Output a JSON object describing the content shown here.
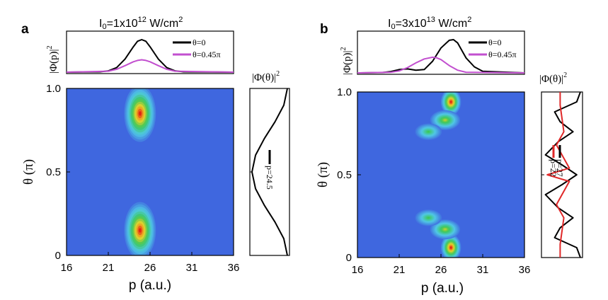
{
  "figure_panels": [
    {
      "panel_label": "a",
      "intensity_label": "I",
      "intensity_sub": "0",
      "intensity_value": "=1x10",
      "intensity_exp": "12",
      "intensity_unit": " W/cm",
      "intensity_unit_exp": "2",
      "momentum_dist_label": "|Φ(p)|",
      "momentum_dist_exp": "2",
      "angular_dist_label": "|Φ(θ)|",
      "angular_dist_exp": "2",
      "xlabel": "p (a.u.)",
      "ylabel": "θ (π)"
    },
    {
      "panel_label": "b",
      "intensity_label": "I",
      "intensity_sub": "0",
      "intensity_value": "=3x10",
      "intensity_exp": "13",
      "intensity_unit": " W/cm",
      "intensity_unit_exp": "2",
      "momentum_dist_label": "|Φ(p)|",
      "momentum_dist_exp": "2",
      "angular_dist_label": "|Φ(θ)|",
      "angular_dist_exp": "2",
      "xlabel": "p (a.u.)",
      "ylabel": "θ (π)"
    }
  ],
  "colors": {
    "map_background": "#3f67df",
    "theta0": "#000000",
    "theta045": "#c24fcf",
    "p22": "#e02828"
  },
  "chart_data": [
    {
      "type": "heatmap",
      "panel": "a",
      "xlabel": "p (a.u.)",
      "ylabel": "θ (π)",
      "xlim": [
        16,
        36
      ],
      "ylim": [
        0,
        1
      ],
      "xticks": [
        "16",
        "21",
        "26",
        "31",
        "36"
      ],
      "yticks": [
        "0",
        "0.5",
        "1.0"
      ],
      "description": "two lobes centered at p=24.8, theta=0.15 and theta=0.85",
      "lobes": [
        {
          "p_center": 24.8,
          "theta_center": 0.15,
          "p_width": 1.9,
          "theta_width": 0.17,
          "peak": 1.0
        },
        {
          "p_center": 24.8,
          "theta_center": 0.85,
          "p_width": 1.9,
          "theta_width": 0.17,
          "peak": 1.0
        }
      ],
      "top_plot": {
        "type": "line",
        "title": "I0=1x10^12 W/cm2",
        "ylabel": "|Φ(p)|2",
        "series": [
          {
            "name": "θ=0",
            "x": [
              16,
              20,
              21,
              22,
              23,
              24,
              24.5,
              25,
              25.5,
              26,
              27,
              28,
              29,
              30,
              36
            ],
            "y": [
              0,
              0.01,
              0.04,
              0.14,
              0.4,
              0.78,
              0.95,
              1.0,
              0.95,
              0.78,
              0.4,
              0.14,
              0.04,
              0.01,
              0
            ]
          },
          {
            "name": "θ=0.45π",
            "x": [
              16,
              21,
              22,
              23,
              24,
              24.5,
              25,
              25.5,
              26,
              27,
              28,
              29,
              36
            ],
            "y": [
              0,
              0.03,
              0.09,
              0.2,
              0.32,
              0.36,
              0.38,
              0.36,
              0.32,
              0.2,
              0.09,
              0.03,
              0
            ]
          }
        ]
      },
      "side_plot": {
        "type": "line",
        "ylabel": "|Φ(θ)|2",
        "series": [
          {
            "name": "p=24.5",
            "theta": [
              0,
              0.1,
              0.2,
              0.3,
              0.4,
              0.5,
              0.6,
              0.7,
              0.8,
              0.9,
              1.0
            ],
            "value": [
              1.0,
              0.9,
              0.65,
              0.35,
              0.1,
              0.0,
              0.1,
              0.35,
              0.65,
              0.9,
              1.0
            ]
          }
        ]
      }
    },
    {
      "type": "heatmap",
      "panel": "b",
      "xlabel": "p (a.u.)",
      "ylabel": "θ (π)",
      "xlim": [
        16,
        36
      ],
      "ylim": [
        0,
        1
      ],
      "xticks": [
        "16",
        "21",
        "26",
        "31",
        "36"
      ],
      "yticks": [
        "0",
        "0.5",
        "1.0"
      ],
      "description": "tilted multi-lobe interference pattern, maxima near p=27 at theta=0.05 and theta=0.95",
      "lobes": [
        {
          "p_center": 27.2,
          "theta_center": 0.06,
          "p_width": 1.2,
          "theta_width": 0.08,
          "peak": 1.0
        },
        {
          "p_center": 26.5,
          "theta_center": 0.17,
          "p_width": 1.8,
          "theta_width": 0.06,
          "peak": 0.7
        },
        {
          "p_center": 24.5,
          "theta_center": 0.24,
          "p_width": 1.6,
          "theta_width": 0.05,
          "peak": 0.55
        },
        {
          "p_center": 27.2,
          "theta_center": 0.94,
          "p_width": 1.2,
          "theta_width": 0.08,
          "peak": 1.0
        },
        {
          "p_center": 26.5,
          "theta_center": 0.83,
          "p_width": 1.8,
          "theta_width": 0.06,
          "peak": 0.7
        },
        {
          "p_center": 24.5,
          "theta_center": 0.76,
          "p_width": 1.6,
          "theta_width": 0.05,
          "peak": 0.55
        }
      ],
      "top_plot": {
        "type": "line",
        "title": "I0=3x10^13 W/cm2",
        "ylabel": "|Φ(p)|2",
        "series": [
          {
            "name": "θ=0",
            "x": [
              16,
              19,
              20,
              21,
              22,
              23,
              24,
              25,
              26,
              27,
              27.5,
              28,
              29,
              30,
              31,
              36
            ],
            "y": [
              0,
              0.01,
              0.04,
              0.1,
              0.12,
              0.08,
              0.1,
              0.35,
              0.75,
              0.98,
              1.0,
              0.9,
              0.45,
              0.18,
              0.05,
              0
            ]
          },
          {
            "name": "θ=0.45π",
            "x": [
              16,
              20,
              21,
              22,
              23,
              24,
              25,
              25.5,
              26,
              27,
              28,
              29,
              36
            ],
            "y": [
              0,
              0.02,
              0.06,
              0.16,
              0.3,
              0.42,
              0.47,
              0.45,
              0.4,
              0.22,
              0.08,
              0.02,
              0
            ]
          }
        ]
      },
      "side_plot": {
        "type": "line",
        "ylabel": "|Φ(θ)|2",
        "series": [
          {
            "name": "p=27",
            "theta": [
              0,
              0.06,
              0.12,
              0.18,
              0.24,
              0.3,
              0.38,
              0.44,
              0.5,
              0.56,
              0.62,
              0.7,
              0.76,
              0.82,
              0.88,
              0.94,
              1.0
            ],
            "value": [
              1.0,
              0.9,
              0.3,
              0.45,
              0.8,
              0.4,
              0.05,
              0.5,
              0.9,
              0.5,
              0.05,
              0.4,
              0.8,
              0.45,
              0.3,
              0.9,
              1.0
            ]
          },
          {
            "name": "p=22",
            "theta": [
              0,
              0.08,
              0.16,
              0.24,
              0.32,
              0.4,
              0.46,
              0.5,
              0.54,
              0.6,
              0.68,
              0.76,
              0.84,
              0.92,
              1.0
            ],
            "value": [
              0.45,
              0.45,
              0.5,
              0.55,
              0.35,
              0.55,
              0.7,
              0.1,
              0.7,
              0.55,
              0.35,
              0.55,
              0.5,
              0.45,
              0.45
            ]
          }
        ]
      }
    }
  ]
}
